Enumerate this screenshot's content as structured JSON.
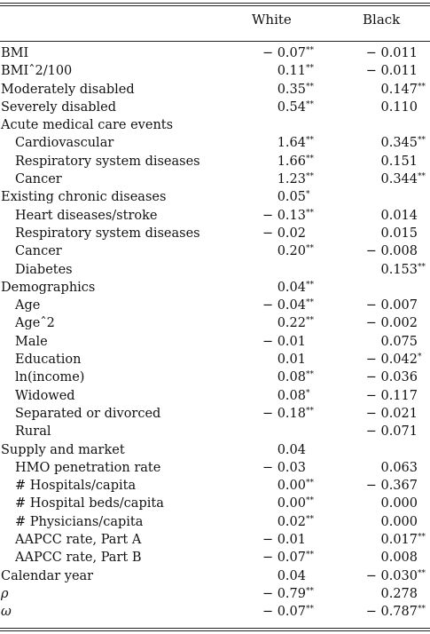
{
  "headers": {
    "white": "White",
    "black": "Black"
  },
  "rows": [
    {
      "label": "BMI",
      "indent": false,
      "white": "− 0.07",
      "white_sig": "**",
      "black": "− 0.011",
      "black_sig": ""
    },
    {
      "label": "BMIˆ2/100",
      "indent": false,
      "white": "0.11",
      "white_sig": "**",
      "black": "− 0.011",
      "black_sig": ""
    },
    {
      "label": "Moderately disabled",
      "indent": false,
      "white": "0.35",
      "white_sig": "**",
      "black": "0.147",
      "black_sig": "**"
    },
    {
      "label": "Severely disabled",
      "indent": false,
      "white": "0.54",
      "white_sig": "**",
      "black": "0.110",
      "black_sig": ""
    },
    {
      "label": "Acute medical care events",
      "indent": false,
      "white": "",
      "white_sig": "",
      "black": "",
      "black_sig": ""
    },
    {
      "label": "Cardiovascular",
      "indent": true,
      "white": "1.64",
      "white_sig": "**",
      "black": "0.345",
      "black_sig": "**"
    },
    {
      "label": "Respiratory system diseases",
      "indent": true,
      "white": "1.66",
      "white_sig": "**",
      "black": "0.151",
      "black_sig": ""
    },
    {
      "label": "Cancer",
      "indent": true,
      "white": "1.23",
      "white_sig": "**",
      "black": "0.344",
      "black_sig": "**"
    },
    {
      "label": "Existing chronic diseases",
      "indent": false,
      "white": "0.05",
      "white_sig": "*",
      "black": "",
      "black_sig": ""
    },
    {
      "label": "Heart diseases/stroke",
      "indent": true,
      "white": "− 0.13",
      "white_sig": "**",
      "black": "0.014",
      "black_sig": ""
    },
    {
      "label": "Respiratory system diseases",
      "indent": true,
      "white": "− 0.02",
      "white_sig": "",
      "black": "0.015",
      "black_sig": ""
    },
    {
      "label": "Cancer",
      "indent": true,
      "white": "0.20",
      "white_sig": "**",
      "black": "− 0.008",
      "black_sig": ""
    },
    {
      "label": "Diabetes",
      "indent": true,
      "white": "",
      "white_sig": "",
      "black": "0.153",
      "black_sig": "**"
    },
    {
      "label": "Demographics",
      "indent": false,
      "white": "0.04",
      "white_sig": "**",
      "black": "",
      "black_sig": ""
    },
    {
      "label": "Age",
      "indent": true,
      "white": "− 0.04",
      "white_sig": "**",
      "black": "− 0.007",
      "black_sig": ""
    },
    {
      "label": "Ageˆ2",
      "indent": true,
      "white": "0.22",
      "white_sig": "**",
      "black": "− 0.002",
      "black_sig": ""
    },
    {
      "label": "Male",
      "indent": true,
      "white": "− 0.01",
      "white_sig": "",
      "black": "0.075",
      "black_sig": ""
    },
    {
      "label": "Education",
      "indent": true,
      "white": "0.01",
      "white_sig": "",
      "black": "− 0.042",
      "black_sig": "*"
    },
    {
      "label": "ln(income)",
      "indent": true,
      "white": "0.08",
      "white_sig": "**",
      "black": "− 0.036",
      "black_sig": ""
    },
    {
      "label": "Widowed",
      "indent": true,
      "white": "0.08",
      "white_sig": "*",
      "black": "− 0.117",
      "black_sig": ""
    },
    {
      "label": "Separated or divorced",
      "indent": true,
      "white": "− 0.18",
      "white_sig": "**",
      "black": "− 0.021",
      "black_sig": ""
    },
    {
      "label": "Rural",
      "indent": true,
      "white": "",
      "white_sig": "",
      "black": "− 0.071",
      "black_sig": ""
    },
    {
      "label": "Supply and market",
      "indent": false,
      "white": "0.04",
      "white_sig": "",
      "black": "",
      "black_sig": ""
    },
    {
      "label": "HMO penetration rate",
      "indent": true,
      "white": "− 0.03",
      "white_sig": "",
      "black": "0.063",
      "black_sig": ""
    },
    {
      "label": "# Hospitals/capita",
      "indent": true,
      "white": "0.00",
      "white_sig": "**",
      "black": "− 0.367",
      "black_sig": ""
    },
    {
      "label": "# Hospital beds/capita",
      "indent": true,
      "white": "0.00",
      "white_sig": "**",
      "black": "0.000",
      "black_sig": ""
    },
    {
      "label": "# Physicians/capita",
      "indent": true,
      "white": "0.02",
      "white_sig": "**",
      "black": "0.000",
      "black_sig": ""
    },
    {
      "label": "AAPCC rate, Part A",
      "indent": true,
      "white": "− 0.01",
      "white_sig": "",
      "black": "0.017",
      "black_sig": "**"
    },
    {
      "label": "AAPCC rate, Part B",
      "indent": true,
      "white": "− 0.07",
      "white_sig": "**",
      "black": "0.008",
      "black_sig": ""
    },
    {
      "label": "Calendar year",
      "indent": false,
      "white": "0.04",
      "white_sig": "",
      "black": "− 0.030",
      "black_sig": "**"
    },
    {
      "label": "ρ",
      "indent": false,
      "greek": true,
      "white": "− 0.79",
      "white_sig": "**",
      "black": "0.278",
      "black_sig": ""
    },
    {
      "label": "ω",
      "indent": false,
      "greek": true,
      "white": "− 0.07",
      "white_sig": "**",
      "black": "− 0.787",
      "black_sig": "**"
    }
  ]
}
